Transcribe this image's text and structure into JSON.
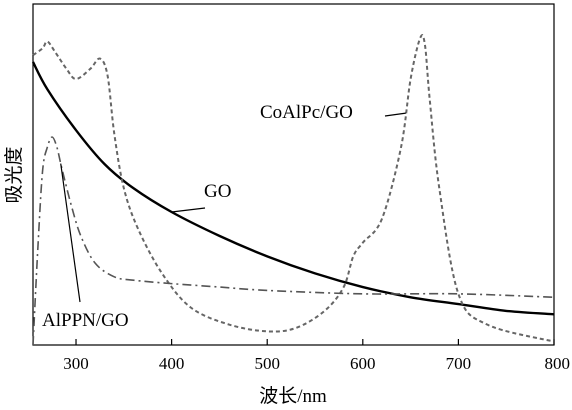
{
  "chart_data": {
    "type": "line",
    "xlabel": "波长/nm",
    "ylabel": "吸光度",
    "xlim": [
      255,
      800
    ],
    "ylim": [
      0,
      1.0
    ],
    "x_ticks": [
      300,
      400,
      500,
      600,
      700,
      800
    ],
    "grid": false,
    "legend": "none",
    "series": [
      {
        "name": "GO",
        "style": "solid",
        "color": "#000000",
        "x": [
          255,
          270,
          300,
          330,
          360,
          400,
          450,
          500,
          550,
          600,
          650,
          700,
          750,
          800
        ],
        "y": [
          0.83,
          0.75,
          0.63,
          0.53,
          0.46,
          0.39,
          0.32,
          0.26,
          0.21,
          0.17,
          0.14,
          0.12,
          0.1,
          0.09
        ]
      },
      {
        "name": "CoAlPc/GO",
        "style": "dashed",
        "color": "#666666",
        "x": [
          255,
          265,
          270,
          278,
          290,
          300,
          315,
          325,
          333,
          340,
          350,
          365,
          390,
          420,
          460,
          500,
          530,
          560,
          580,
          590,
          600,
          620,
          640,
          650,
          660,
          665,
          670,
          680,
          700,
          730,
          800
        ],
        "y": [
          0.85,
          0.87,
          0.89,
          0.86,
          0.81,
          0.78,
          0.81,
          0.84,
          0.79,
          0.62,
          0.46,
          0.34,
          0.21,
          0.11,
          0.06,
          0.04,
          0.05,
          0.1,
          0.17,
          0.26,
          0.3,
          0.37,
          0.58,
          0.78,
          0.9,
          0.88,
          0.72,
          0.46,
          0.15,
          0.06,
          0.01
        ]
      },
      {
        "name": "AlPPN/GO",
        "style": "dash-dot",
        "color": "#555555",
        "x": [
          255,
          260,
          265,
          270,
          275,
          280,
          285,
          295,
          305,
          320,
          340,
          360,
          400,
          450,
          500,
          600,
          700,
          800
        ],
        "y": [
          0.0,
          0.28,
          0.51,
          0.58,
          0.61,
          0.58,
          0.52,
          0.41,
          0.32,
          0.24,
          0.2,
          0.19,
          0.18,
          0.17,
          0.16,
          0.15,
          0.15,
          0.14
        ]
      }
    ],
    "annotations": [
      {
        "text": "GO",
        "series": "GO",
        "at_x": 400
      },
      {
        "text": "CoAlPc/GO",
        "series": "CoAlPc/GO",
        "at_x": 645
      },
      {
        "text": "AlPPN/GO",
        "series": "AlPPN/GO",
        "at_x": 284
      }
    ]
  }
}
